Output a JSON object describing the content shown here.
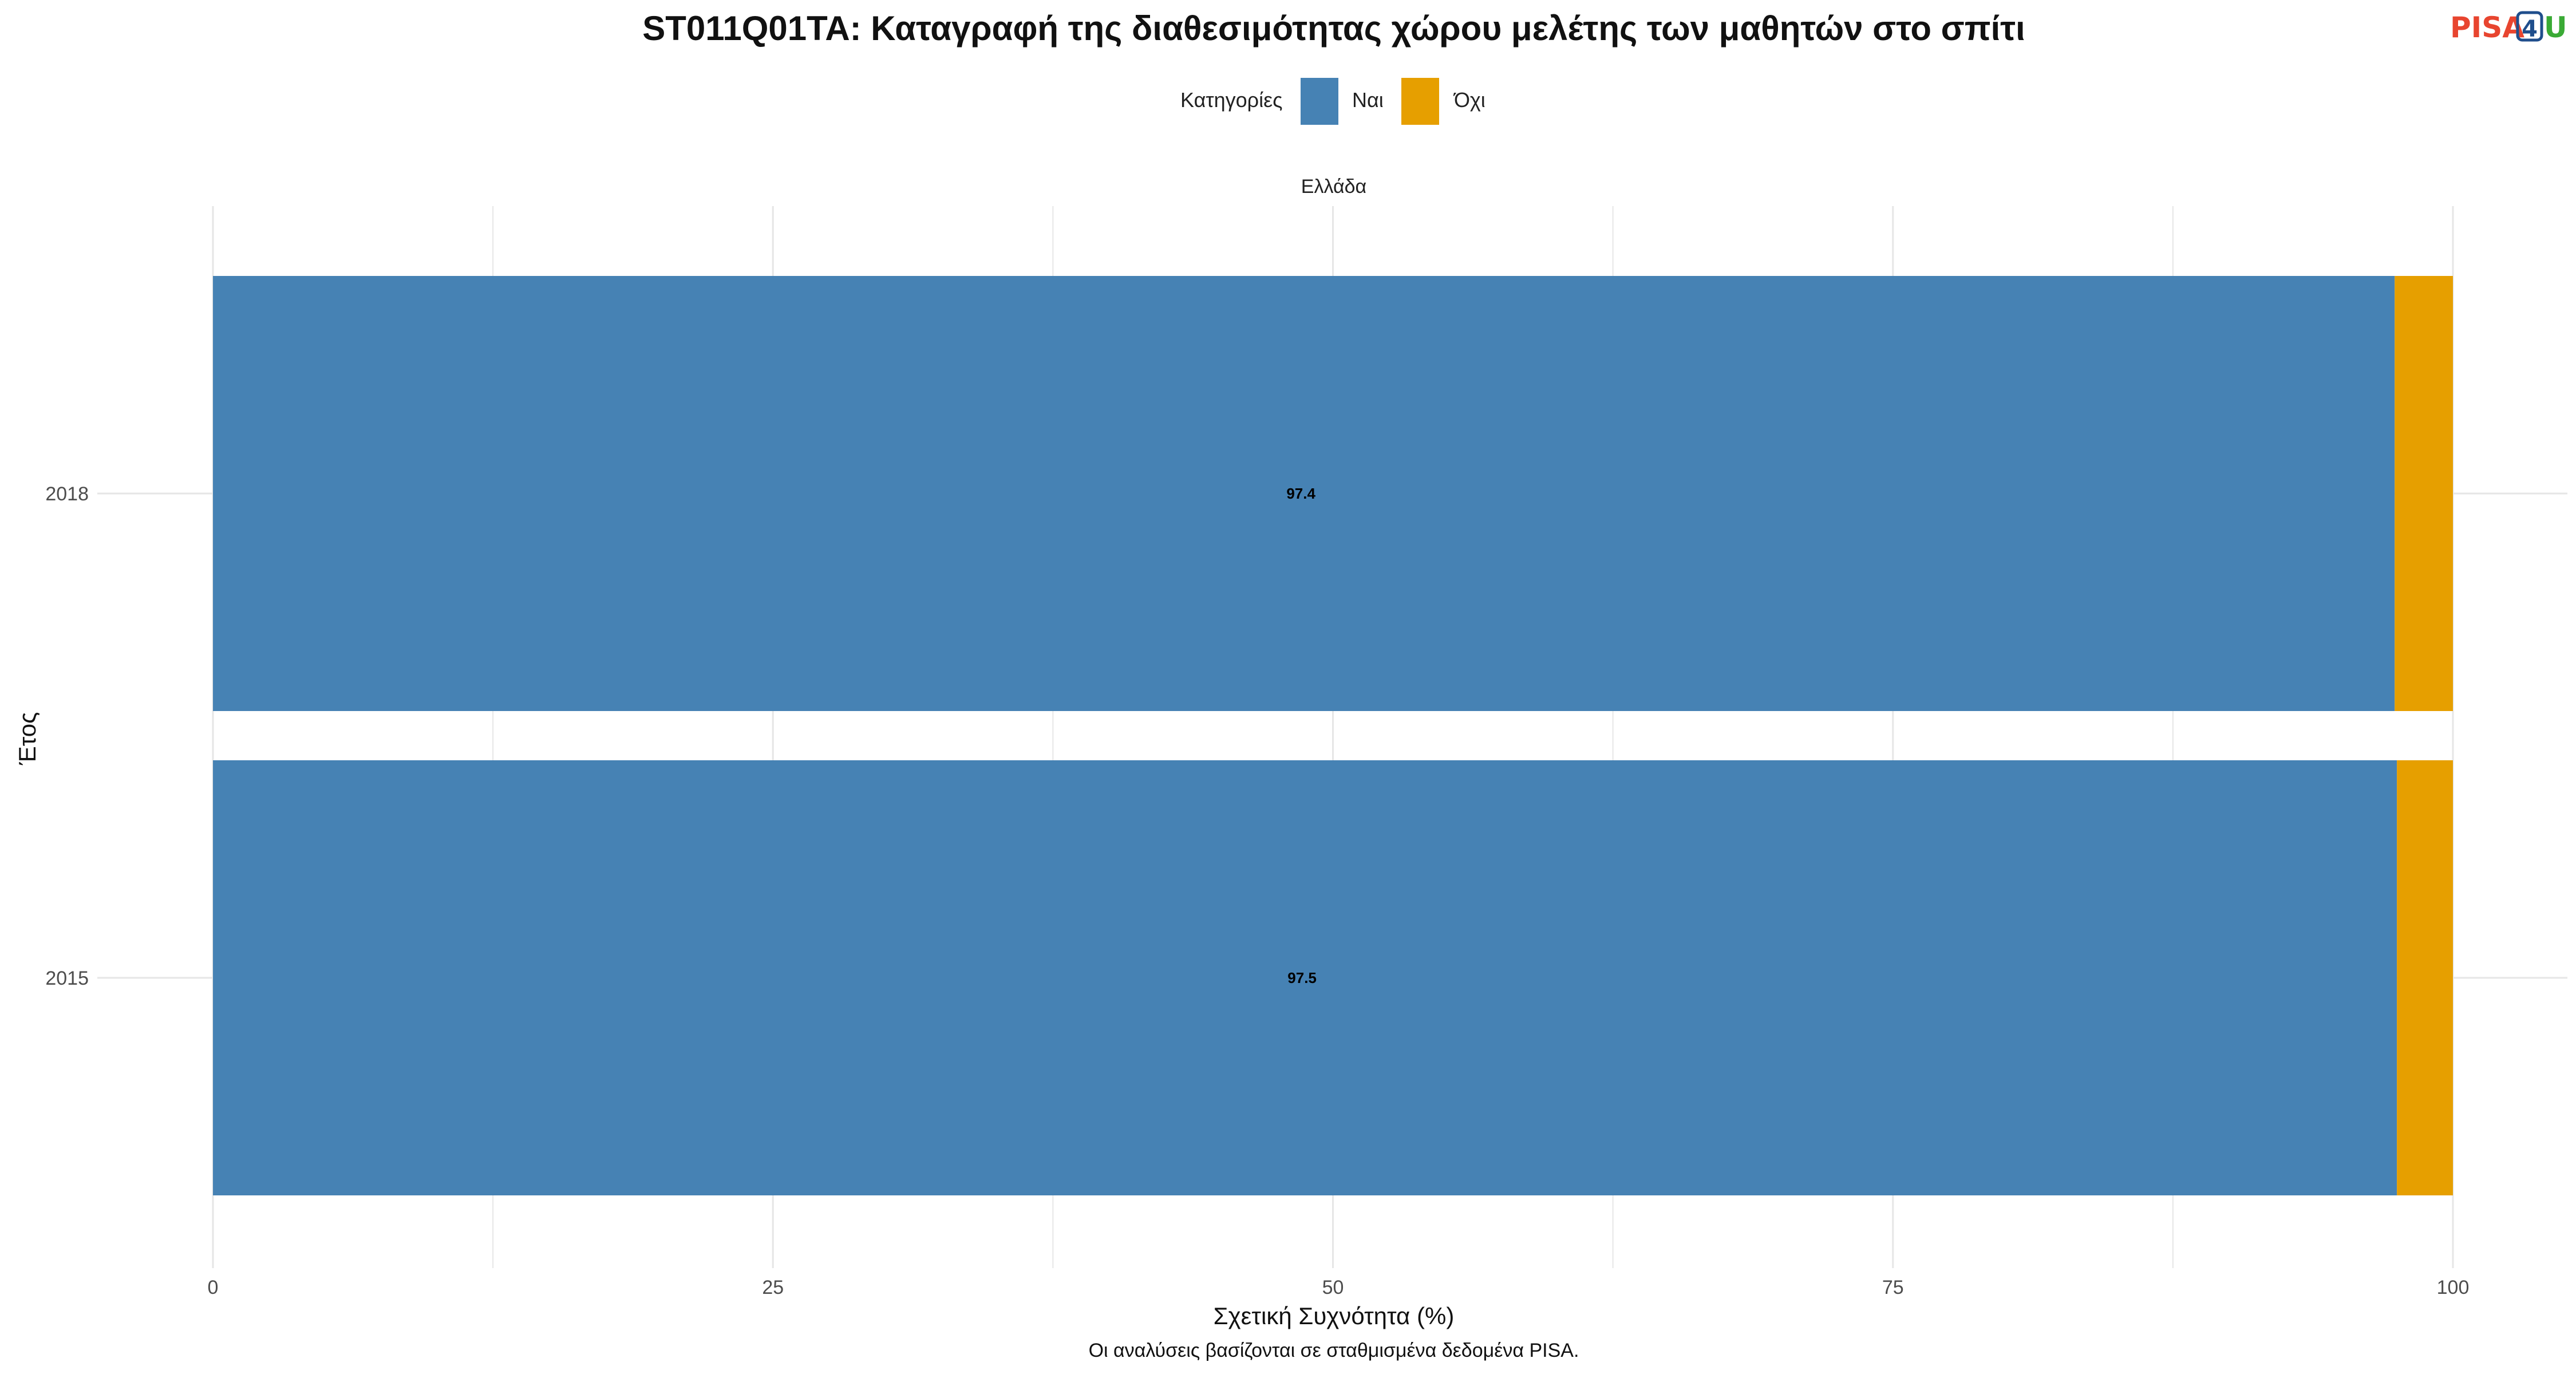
{
  "chart_data": {
    "type": "bar",
    "orientation": "horizontal",
    "stacked": true,
    "title": "ST011Q01TA: Καταγραφή της διαθεσιμότητας χώρου μελέτης των μαθητών στο σπίτι",
    "facet": "Ελλάδα",
    "legend_title": "Κατηγορίες",
    "legend_position": "top",
    "categories": [
      "2018",
      "2015"
    ],
    "series": [
      {
        "name": "Ναι",
        "values": [
          97.4,
          97.5
        ],
        "color": "#4682B4",
        "labels": [
          "97.4",
          "97.5"
        ]
      },
      {
        "name": "Όχι",
        "values": [
          2.6,
          2.5
        ],
        "color": "#E69F00"
      }
    ],
    "xlabel": "Σχετική Συχνότητα (%)",
    "ylabel": "Έτος",
    "xlim": [
      0,
      100
    ],
    "x_ticks": [
      "0",
      "25",
      "50",
      "75",
      "100"
    ],
    "grid": true,
    "caption": "Οι αναλύσεις βασίζονται σε σταθμισμένα δεδομένα PISA."
  },
  "logo": {
    "text_pisa": "PISA",
    "text_4": "4",
    "text_u": "U"
  }
}
